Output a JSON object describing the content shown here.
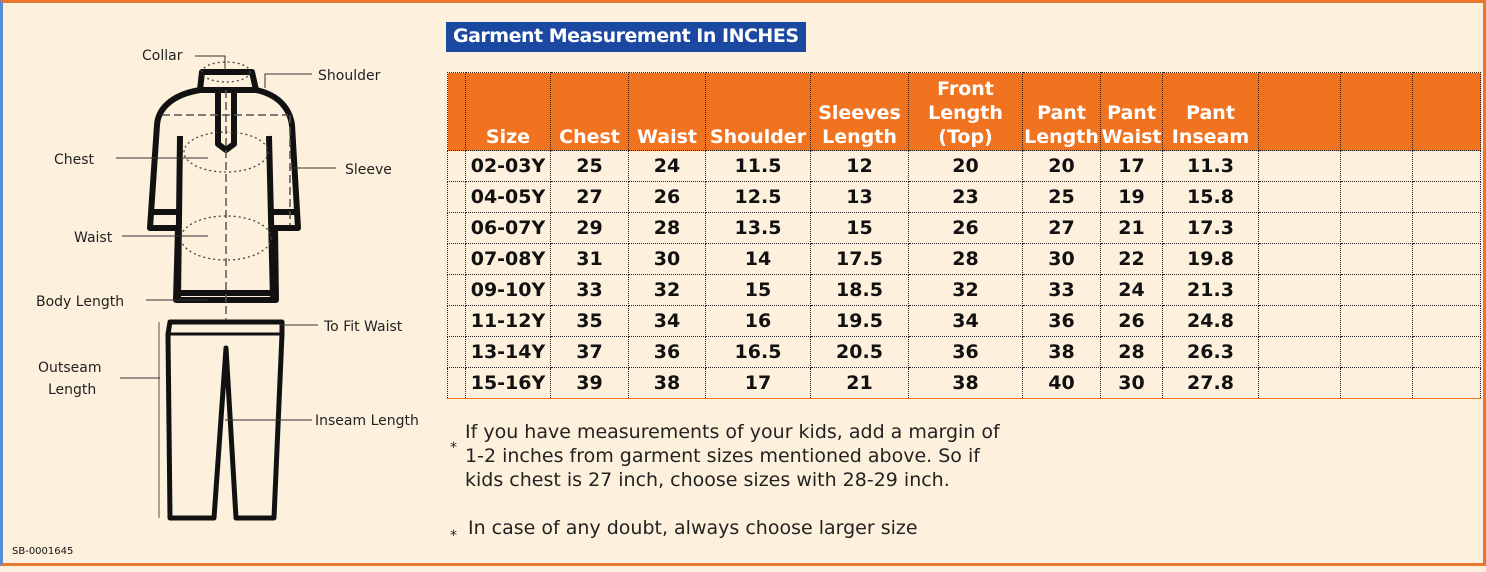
{
  "title": "Garment Measurement In INCHES",
  "diagram": {
    "labels": {
      "collar": "Collar",
      "shoulder": "Shoulder",
      "chest": "Chest",
      "sleeve": "Sleeve",
      "waist": "Waist",
      "body_length": "Body Length",
      "to_fit_waist": "To Fit Waist",
      "outseam_1": "Outseam",
      "outseam_2": "Length",
      "inseam": "Inseam Length"
    }
  },
  "table": {
    "headers": [
      "",
      "Size",
      "Chest",
      "Waist",
      "Shoulder",
      "Sleeves Length",
      "Front Length (Top)",
      "Pant Length",
      "Pant Waist",
      "Pant Inseam",
      "",
      "",
      ""
    ],
    "rows": [
      [
        "02-03Y",
        "25",
        "24",
        "11.5",
        "12",
        "20",
        "20",
        "17",
        "11.3"
      ],
      [
        "04-05Y",
        "27",
        "26",
        "12.5",
        "13",
        "23",
        "25",
        "19",
        "15.8"
      ],
      [
        "06-07Y",
        "29",
        "28",
        "13.5",
        "15",
        "26",
        "27",
        "21",
        "17.3"
      ],
      [
        "07-08Y",
        "31",
        "30",
        "14",
        "17.5",
        "28",
        "30",
        "22",
        "19.8"
      ],
      [
        "09-10Y",
        "33",
        "32",
        "15",
        "18.5",
        "32",
        "33",
        "24",
        "21.3"
      ],
      [
        "11-12Y",
        "35",
        "34",
        "16",
        "19.5",
        "34",
        "36",
        "26",
        "24.8"
      ],
      [
        "13-14Y",
        "37",
        "36",
        "16.5",
        "20.5",
        "36",
        "38",
        "28",
        "26.3"
      ],
      [
        "15-16Y",
        "39",
        "38",
        "17",
        "21",
        "38",
        "40",
        "30",
        "27.8"
      ]
    ]
  },
  "notes": [
    "If you have measurements of your kids, add a margin of 1-2 inches from garment sizes mentioned above. So if kids chest is 27 inch, choose sizes with 28-29 inch.",
    "In case of any doubt, always choose larger size"
  ],
  "note_bullet": "*",
  "sku": "SB-0001645",
  "colors": {
    "header": "#f2731f",
    "title_bg": "#1b48a0",
    "background": "#fdf0dc"
  }
}
